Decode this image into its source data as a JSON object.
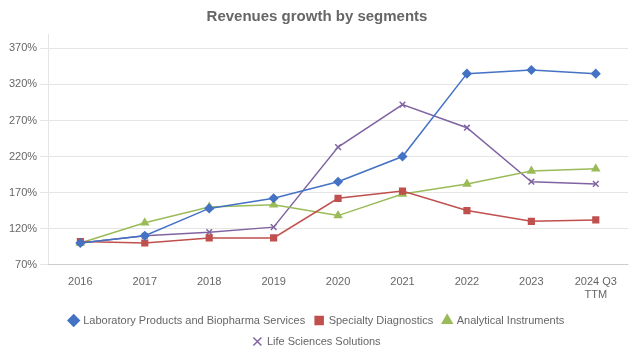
{
  "chart_data": {
    "type": "line",
    "title": "Revenues growth by segments",
    "categories": [
      "2016",
      "2017",
      "2018",
      "2019",
      "2020",
      "2021",
      "2022",
      "2023",
      "2024 Q3\nTTM"
    ],
    "series": [
      {
        "name": "Laboratory Products and Biopharma Services",
        "color": "#4472C4",
        "marker": "diamond",
        "values": [
          100,
          110,
          148,
          162,
          185,
          220,
          335,
          340,
          335
        ]
      },
      {
        "name": "Specialty Diagnostics",
        "color": "#C0504D",
        "marker": "square",
        "values": [
          102,
          100,
          107,
          107,
          162,
          172,
          145,
          130,
          132
        ]
      },
      {
        "name": "Analytical Instruments",
        "color": "#9BBB59",
        "marker": "triangle",
        "values": [
          100,
          128,
          150,
          153,
          138,
          168,
          182,
          200,
          203
        ]
      },
      {
        "name": "Life Sciences Solutions",
        "color": "#8064A2",
        "marker": "x",
        "values": [
          100,
          110,
          115,
          122,
          233,
          292,
          260,
          185,
          182
        ]
      }
    ],
    "ylim": [
      70,
      390
    ],
    "yticks": [
      {
        "value": 70,
        "label": "70%"
      },
      {
        "value": 120,
        "label": "120%"
      },
      {
        "value": 170,
        "label": "170%"
      },
      {
        "value": 220,
        "label": "220%"
      },
      {
        "value": 270,
        "label": "270%"
      },
      {
        "value": 320,
        "label": "320%"
      },
      {
        "value": 370,
        "label": "370%"
      }
    ],
    "grid": "y",
    "legend": "bottom"
  }
}
